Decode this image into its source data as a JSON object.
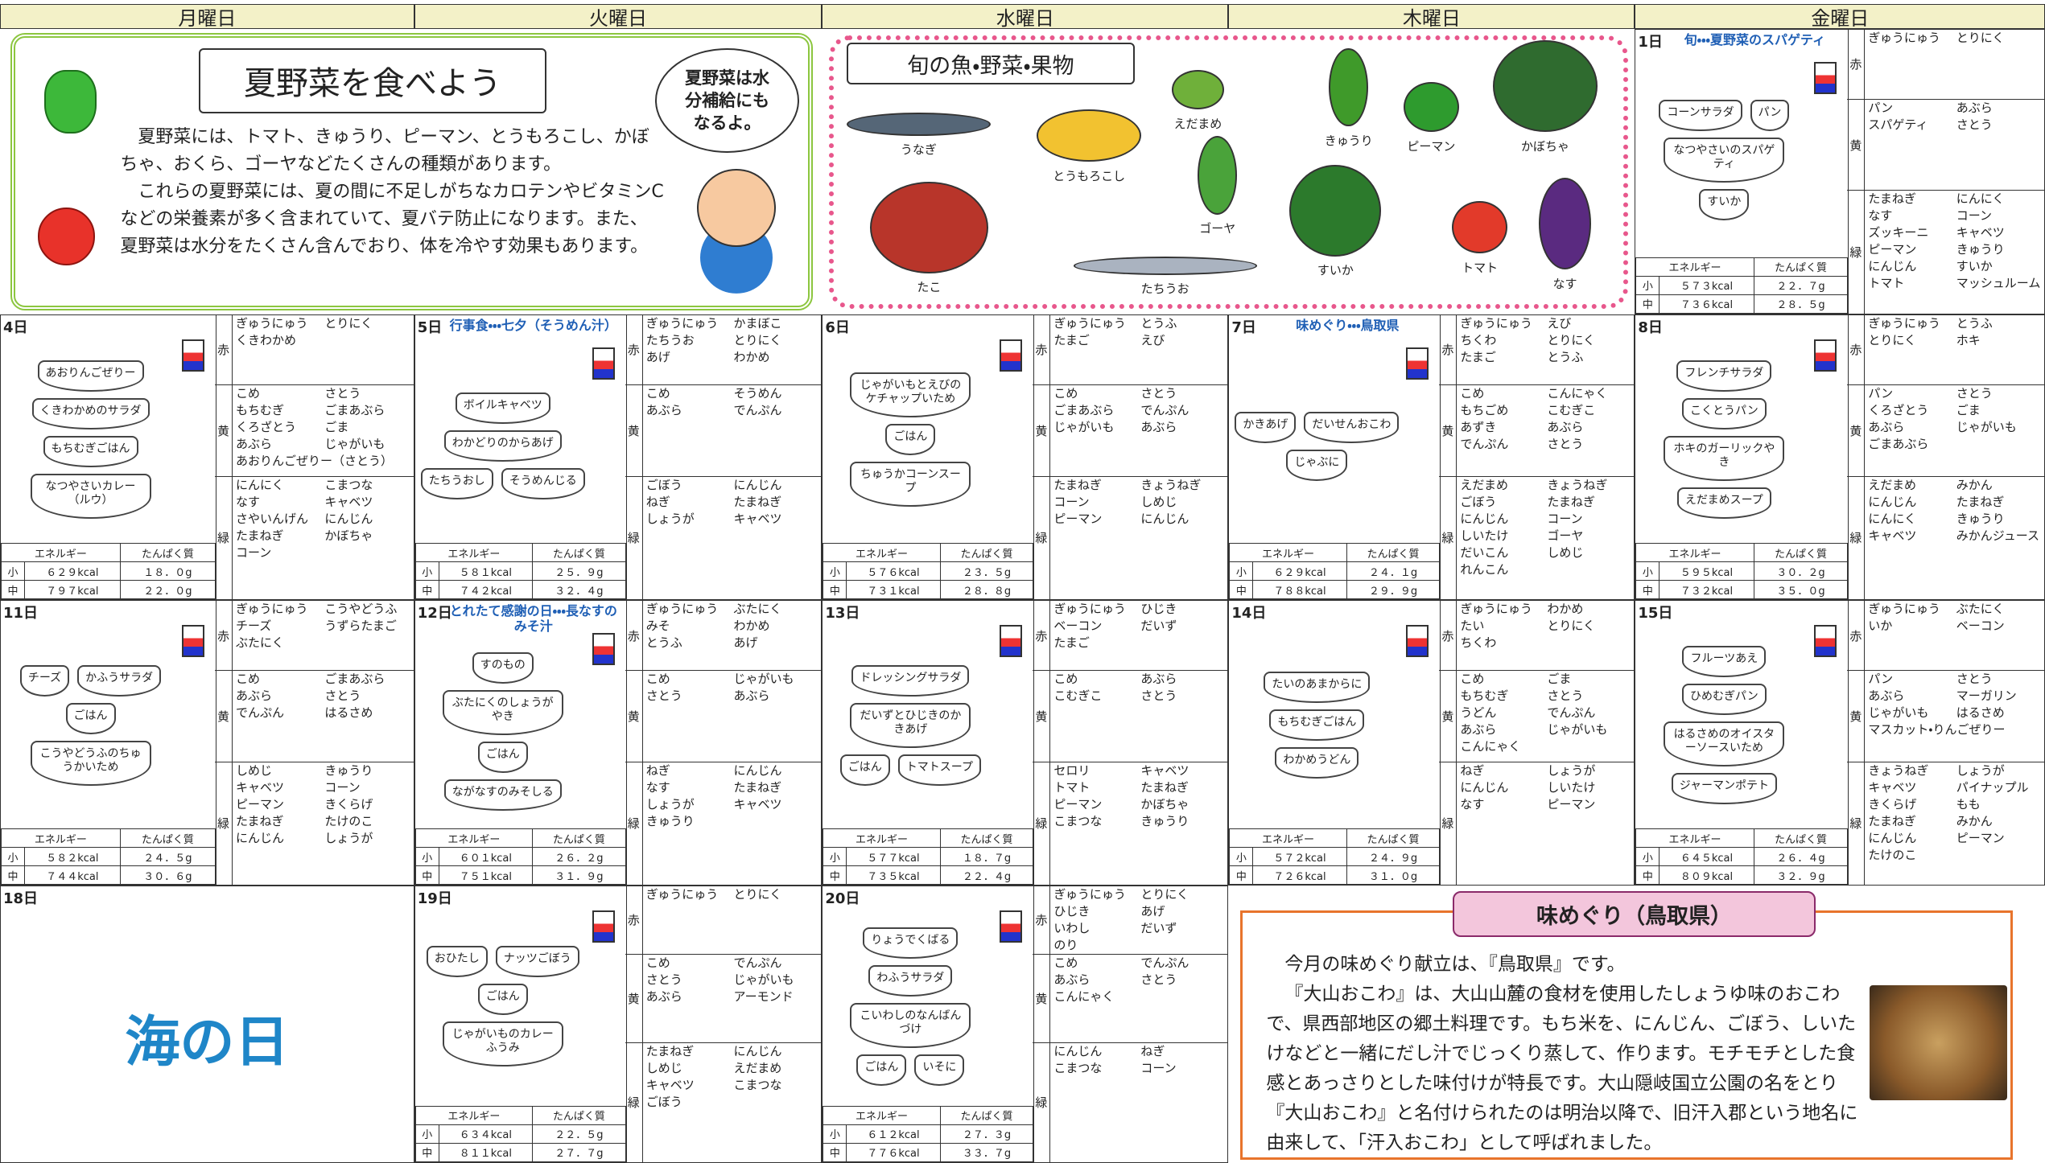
{
  "weekdays": [
    "月曜日",
    "火曜日",
    "水曜日",
    "木曜日",
    "金曜日"
  ],
  "labels": {
    "red": "赤",
    "yellow": "黄",
    "green": "緑",
    "energy": "エネルギー",
    "protein": "たんぱく質",
    "small": "小",
    "medium": "中"
  },
  "feature_summer": {
    "title": "夏野菜を食べよう",
    "bubble": "夏野菜は水分補給にもなるよ。",
    "body": [
      "夏野菜には、トマト、きゅうり、ピーマン、とうもろこし、かぼちゃ、おくら、ゴーヤなどたくさんの種類があります。",
      "これらの夏野菜には、夏の間に不足しがちなカロテンやビタミンCなどの栄養素が多く含まれていて、夏バテ防止になります。また、夏野菜は水分をたくさん含んでおり、体を冷やす効果もあります。"
    ]
  },
  "feature_seasonal": {
    "title": "旬の魚・野菜・果物",
    "items": [
      "うなぎ",
      "とうもろこし",
      "えだまめ",
      "きゅうり",
      "ピーマン",
      "かぼちゃ",
      "たこ",
      "ゴーヤ",
      "すいか",
      "トマト",
      "なす",
      "たちうお"
    ]
  },
  "days": [
    {
      "date": "1日",
      "title": "旬・・・夏野菜のスパゲティ",
      "dishes": [
        "コーンサラダ",
        "パン",
        "なつやさいのスパゲティ",
        "すいか"
      ],
      "small": [
        "５７３kcal",
        "２２．７g"
      ],
      "medium": [
        "７３６kcal",
        "２８．５g"
      ],
      "red": [
        "ぎゅうにゅう",
        "とりにく"
      ],
      "yellow": [
        "パン",
        "あぶら",
        "スパゲティ",
        "さとう"
      ],
      "green": [
        "たまねぎ",
        "にんにく",
        "なす",
        "コーン",
        "ズッキーニ",
        "キャベツ",
        "ピーマン",
        "きゅうり",
        "にんじん",
        "すいか",
        "トマト",
        "マッシュルーム"
      ]
    },
    {
      "date": "4日",
      "dishes": [
        "あおりんごぜりー",
        "くきわかめのサラダ",
        "もちむぎごはん",
        "なつやさいカレー（ルウ）"
      ],
      "small": [
        "６２９kcal",
        "１８．０g"
      ],
      "medium": [
        "７９７kcal",
        "２２．０g"
      ],
      "red": [
        "ぎゅうにゅう",
        "とりにく",
        "くきわかめ"
      ],
      "yellow": [
        "こめ",
        "さとう",
        "もちむぎ",
        "ごまあぶら",
        "くろざとう",
        "ごま",
        "あぶら",
        "じゃがいも",
        "あおりんごぜりー（さとう）"
      ],
      "green": [
        "にんにく",
        "こまつな",
        "なす",
        "キャベツ",
        "さやいんげん",
        "にんじん",
        "たまねぎ",
        "かぼちゃ",
        "コーン"
      ]
    },
    {
      "date": "5日",
      "title": "行事食・・・七夕（そうめん汁）",
      "dishes": [
        "ボイルキャベツ",
        "わかどりのからあげ",
        "たちうおし",
        "そうめんじる"
      ],
      "small": [
        "５８１kcal",
        "２５．９g"
      ],
      "medium": [
        "７４２kcal",
        "３２．４g"
      ],
      "red": [
        "ぎゅうにゅう",
        "かまぼこ",
        "たちうお",
        "とりにく",
        "あげ",
        "わかめ"
      ],
      "yellow": [
        "こめ",
        "そうめん",
        "あぶら",
        "でんぷん"
      ],
      "green": [
        "ごぼう",
        "にんじん",
        "ねぎ",
        "たまねぎ",
        "しょうが",
        "キャベツ"
      ]
    },
    {
      "date": "6日",
      "dishes": [
        "じゃがいもとえびのケチャップいため",
        "ごはん",
        "ちゅうかコーンスープ"
      ],
      "small": [
        "５７６kcal",
        "２３．５g"
      ],
      "medium": [
        "７３１kcal",
        "２８．８g"
      ],
      "red": [
        "ぎゅうにゅう",
        "とうふ",
        "たまご",
        "えび"
      ],
      "yellow": [
        "こめ",
        "さとう",
        "ごまあぶら",
        "でんぷん",
        "じゃがいも",
        "あぶら"
      ],
      "green": [
        "たまねぎ",
        "きょうねぎ",
        "コーン",
        "しめじ",
        "ピーマン",
        "にんじん"
      ]
    },
    {
      "date": "7日",
      "title": "味めぐり・・・鳥取県",
      "dishes": [
        "かきあげ",
        "だいせんおこわ",
        "じゃぶに"
      ],
      "small": [
        "６２９kcal",
        "２４．１g"
      ],
      "medium": [
        "７８８kcal",
        "２９．９g"
      ],
      "red": [
        "ぎゅうにゅう",
        "えび",
        "ちくわ",
        "とりにく",
        "たまご",
        "とうふ"
      ],
      "yellow": [
        "こめ",
        "こんにゃく",
        "もちごめ",
        "こむぎこ",
        "あずき",
        "あぶら",
        "でんぷん",
        "さとう"
      ],
      "green": [
        "えだまめ",
        "きょうねぎ",
        "ごぼう",
        "たまねぎ",
        "にんじん",
        "コーン",
        "しいたけ",
        "ゴーヤ",
        "だいこん",
        "しめじ",
        "れんこん"
      ]
    },
    {
      "date": "8日",
      "dishes": [
        "フレンチサラダ",
        "こくとうパン",
        "ホキのガーリックやき",
        "えだまめスープ"
      ],
      "small": [
        "５９５kcal",
        "３０．２g"
      ],
      "medium": [
        "７３２kcal",
        "３５．０g"
      ],
      "red": [
        "ぎゅうにゅう",
        "とうふ",
        "とりにく",
        "ホキ"
      ],
      "yellow": [
        "パン",
        "さとう",
        "くろざとう",
        "ごま",
        "あぶら",
        "じゃがいも",
        "ごまあぶら"
      ],
      "green": [
        "えだまめ",
        "みかん",
        "にんじん",
        "たまねぎ",
        "にんにく",
        "きゅうり",
        "キャベツ",
        "みかんジュース"
      ]
    },
    {
      "date": "11日",
      "dishes": [
        "チーズ",
        "かふうサラダ",
        "ごはん",
        "こうやどうふのちゅうかいため"
      ],
      "small": [
        "５８２kcal",
        "２４．５g"
      ],
      "medium": [
        "７４４kcal",
        "３０．６g"
      ],
      "red": [
        "ぎゅうにゅう",
        "こうやどうふ",
        "チーズ",
        "うずらたまご",
        "ぶたにく"
      ],
      "yellow": [
        "こめ",
        "ごまあぶら",
        "あぶら",
        "さとう",
        "でんぷん",
        "はるさめ"
      ],
      "green": [
        "しめじ",
        "きゅうり",
        "キャベツ",
        "コーン",
        "ピーマン",
        "きくらげ",
        "たまねぎ",
        "たけのこ",
        "にんじん",
        "しょうが"
      ]
    },
    {
      "date": "12日",
      "title": "とれたて感謝の日・・・長なすのみそ汁",
      "dishes": [
        "すのもの",
        "ぶたにくのしょうがやき",
        "ごはん",
        "ながなすのみそしる"
      ],
      "small": [
        "６０１kcal",
        "２６．２g"
      ],
      "medium": [
        "７５１kcal",
        "３１．９g"
      ],
      "red": [
        "ぎゅうにゅう",
        "ぶたにく",
        "みそ",
        "わかめ",
        "とうふ",
        "あげ"
      ],
      "yellow": [
        "こめ",
        "じゃがいも",
        "さとう",
        "あぶら"
      ],
      "green": [
        "ねぎ",
        "にんじん",
        "なす",
        "たまねぎ",
        "しょうが",
        "キャベツ",
        "きゅうり"
      ]
    },
    {
      "date": "13日",
      "dishes": [
        "ドレッシングサラダ",
        "だいずとひじきのかきあげ",
        "ごはん",
        "トマトスープ"
      ],
      "small": [
        "５７７kcal",
        "１８．７g"
      ],
      "medium": [
        "７３５kcal",
        "２２．４g"
      ],
      "red": [
        "ぎゅうにゅう",
        "ひじき",
        "ベーコン",
        "だいず",
        "たまご"
      ],
      "yellow": [
        "こめ",
        "あぶら",
        "こむぎこ",
        "さとう"
      ],
      "green": [
        "セロリ",
        "キャベツ",
        "トマト",
        "たまねぎ",
        "ピーマン",
        "かぼちゃ",
        "こまつな",
        "きゅうり"
      ]
    },
    {
      "date": "14日",
      "dishes": [
        "たいのあまからに",
        "もちむぎごはん",
        "わかめうどん"
      ],
      "small": [
        "５７２kcal",
        "２４．９g"
      ],
      "medium": [
        "７２６kcal",
        "３１．０g"
      ],
      "red": [
        "ぎゅうにゅう",
        "わかめ",
        "たい",
        "とりにく",
        "ちくわ"
      ],
      "yellow": [
        "こめ",
        "ごま",
        "もちむぎ",
        "さとう",
        "うどん",
        "でんぷん",
        "あぶら",
        "じゃがいも",
        "こんにゃく"
      ],
      "green": [
        "ねぎ",
        "しょうが",
        "にんじん",
        "しいたけ",
        "なす",
        "ピーマン"
      ]
    },
    {
      "date": "15日",
      "dishes": [
        "フルーツあえ",
        "ひめむぎパン",
        "はるさめのオイスターソースいため",
        "ジャーマンポテト"
      ],
      "small": [
        "６４５kcal",
        "２６．４g"
      ],
      "medium": [
        "８０９kcal",
        "３２．９g"
      ],
      "red": [
        "ぎゅうにゅう",
        "ぶたにく",
        "いか",
        "ベーコン"
      ],
      "yellow": [
        "パン",
        "さとう",
        "あぶら",
        "マーガリン",
        "じゃがいも",
        "はるさめ",
        "マスカット・りんごぜりー"
      ],
      "green": [
        "きょうねぎ",
        "しょうが",
        "キャベツ",
        "パイナップル",
        "きくらげ",
        "もも",
        "たまねぎ",
        "みかん",
        "にんじん",
        "ピーマン",
        "たけのこ"
      ]
    },
    {
      "date": "19日",
      "dishes": [
        "おひたし",
        "ナッツごぼう",
        "ごはん",
        "じゃがいものカレーふうみ"
      ],
      "small": [
        "６３４kcal",
        "２２．５g"
      ],
      "medium": [
        "８１１kcal",
        "２７．７g"
      ],
      "red": [
        "ぎゅうにゅう",
        "とりにく"
      ],
      "yellow": [
        "こめ",
        "でんぷん",
        "さとう",
        "じゃがいも",
        "あぶら",
        "アーモンド"
      ],
      "green": [
        "たまねぎ",
        "にんじん",
        "しめじ",
        "えだまめ",
        "キャベツ",
        "こまつな",
        "ごぼう"
      ]
    },
    {
      "date": "20日",
      "dishes": [
        "りょうでくばる",
        "わふうサラダ",
        "こいわしのなんばんづけ",
        "ごはん",
        "いそに"
      ],
      "small": [
        "６１２kcal",
        "２７．３g"
      ],
      "medium": [
        "７７６kcal",
        "３３．７g"
      ],
      "red": [
        "ぎゅうにゅう",
        "とりにく",
        "ひじき",
        "あげ",
        "いわし",
        "だいず",
        "のり"
      ],
      "yellow": [
        "こめ",
        "でんぷん",
        "あぶら",
        "さとう",
        "こんにゃく"
      ],
      "green": [
        "にんじん",
        "ねぎ",
        "こまつな",
        "コーン"
      ]
    }
  ],
  "holiday": {
    "date": "18日",
    "name": "海の日"
  },
  "info": {
    "title": "味めぐり（鳥取県）",
    "body": [
      "今月の味めぐり献立は、『鳥取県』です。",
      "『大山おこわ』は、大山山麓の食材を使用したしょうゆ味のおこわで、県西部地区の郷土料理です。もち米を、にんじん、ごぼう、しいたけなどと一緒にだし汁でじっくり蒸して、作ります。モチモチとした食感とあっさりとした味付けが特長です。大山隠岐国立公園の名をとり『大山おこわ』と名付けられたのは明治以降で、旧汗入郡という地名に由来して、「汗入おこわ」として呼ばれました。"
    ]
  }
}
